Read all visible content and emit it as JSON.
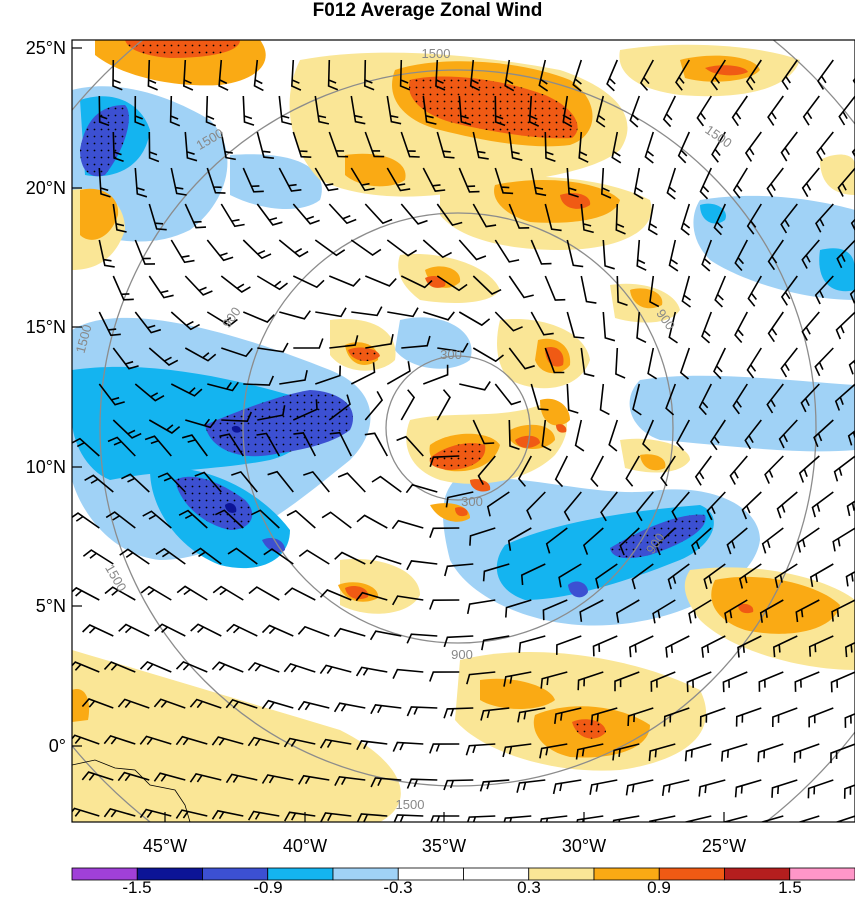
{
  "title": "F012 Average Zonal Wind",
  "axes": {
    "x_ticks": [
      "45°W",
      "40°W",
      "35°W",
      "30°W",
      "25°W"
    ],
    "y_ticks": [
      "25°N",
      "20°N",
      "15°N",
      "10°N",
      "5°N",
      "0°"
    ]
  },
  "range_rings": {
    "labels": [
      "300",
      "300",
      "900",
      "900",
      "900",
      "900",
      "1500",
      "1500",
      "1500",
      "1500",
      "1500",
      "1500"
    ]
  },
  "colorbar": {
    "labels": [
      "-1.5",
      "-0.9",
      "-0.3",
      "0.3",
      "0.9",
      "1.5"
    ],
    "colors": [
      "#a040d8",
      "#0c1496",
      "#3c50d2",
      "#14b4f0",
      "#a0d2f6",
      "#ffffff",
      "#ffffff",
      "#fae696",
      "#faaa14",
      "#f05a14",
      "#b41e1e",
      "#ff96c8"
    ]
  },
  "colors": {
    "ring_stroke": "#8c8c8c",
    "barb_stroke": "#000000",
    "coast_stroke": "#000000"
  }
}
